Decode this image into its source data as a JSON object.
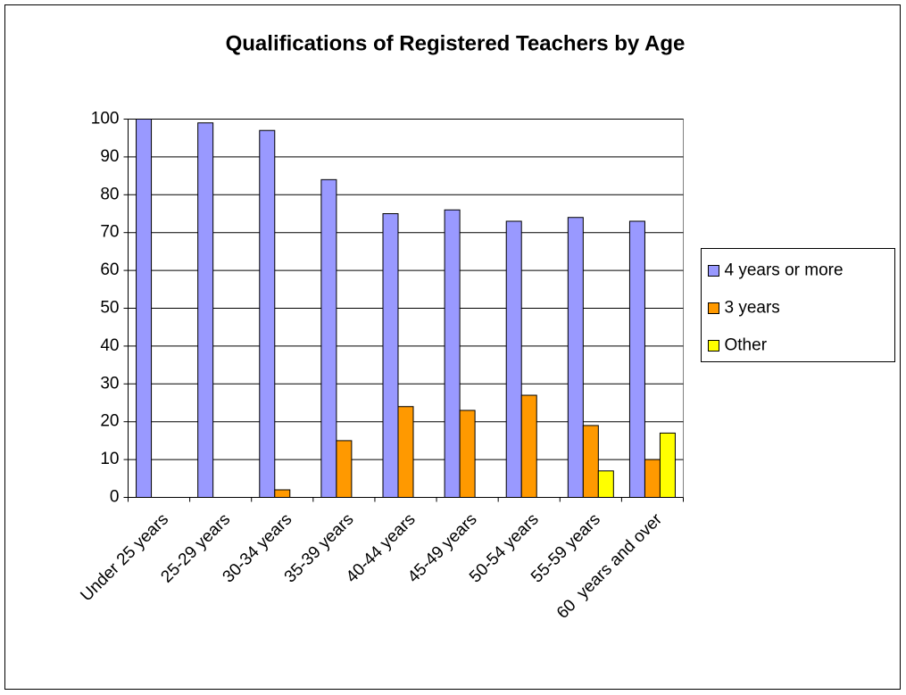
{
  "chart_data": {
    "type": "bar",
    "title": "Qualifications of Registered Teachers by Age",
    "categories": [
      "Under 25 years",
      "25-29 years",
      "30-34 years",
      "35-39 years",
      "40-44 years",
      "45-49 years",
      "50-54 years",
      "55-59 years",
      "60  years and over"
    ],
    "series": [
      {
        "name": "4 years or more",
        "color": "#9999ff",
        "values": [
          100,
          99,
          97,
          84,
          75,
          76,
          73,
          74,
          73
        ]
      },
      {
        "name": "3 years",
        "color": "#ff9900",
        "values": [
          0,
          0,
          2,
          15,
          24,
          23,
          27,
          19,
          10
        ]
      },
      {
        "name": "Other",
        "color": "#ffff00",
        "values": [
          0,
          0,
          0,
          0,
          0,
          0,
          0,
          7,
          17
        ]
      }
    ],
    "ylim": [
      0,
      100
    ],
    "yticks": [
      0,
      10,
      20,
      30,
      40,
      50,
      60,
      70,
      80,
      90,
      100
    ],
    "grid": true,
    "legend": "right"
  }
}
